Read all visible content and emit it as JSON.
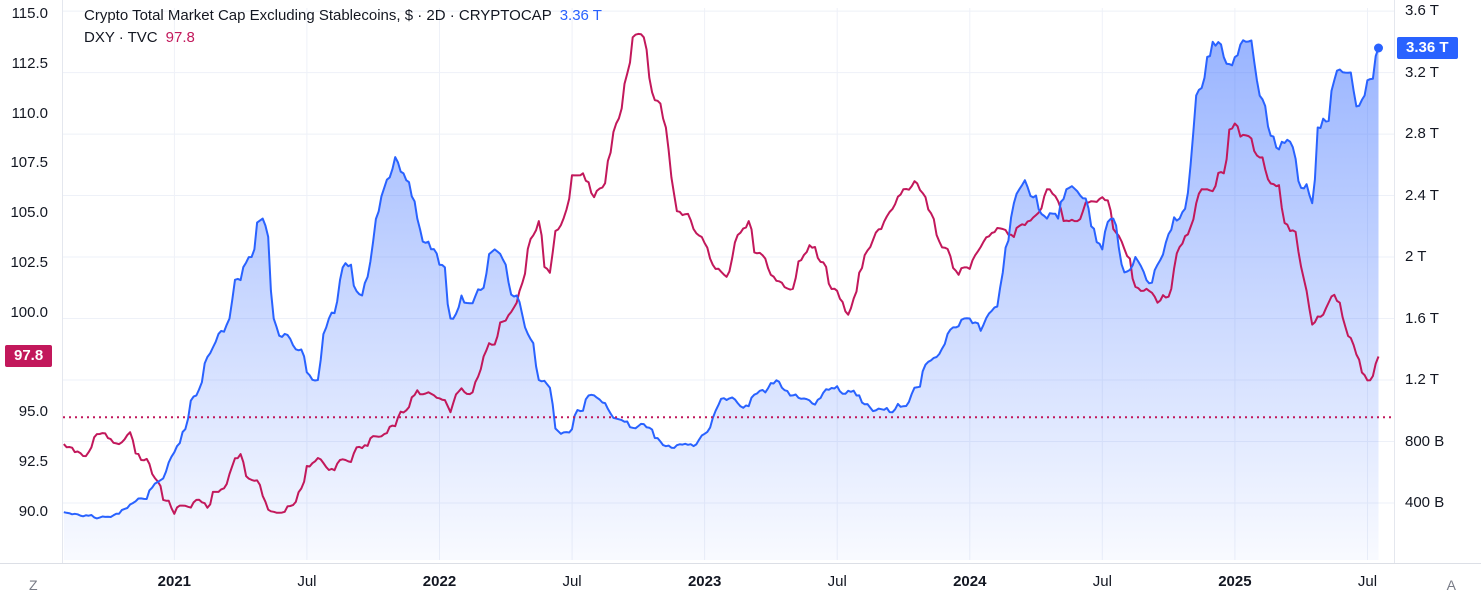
{
  "legend": {
    "line1": {
      "title": "Crypto Total Market Cap Excluding Stablecoins, $ · 2D · CRYPTOCAP",
      "value": "3.36 T"
    },
    "line2": {
      "title": "DXY · TVC",
      "value": "97.8"
    }
  },
  "colors": {
    "crypto": "#2962FF",
    "dxy": "#C2185B",
    "grid": "#eef1f8",
    "axis_text": "#131722",
    "muted_text": "#787b86",
    "badge_text": "#ffffff"
  },
  "left_axis": {
    "ticks": [
      {
        "label": "115.0",
        "value": 115.0
      },
      {
        "label": "112.5",
        "value": 112.5
      },
      {
        "label": "110.0",
        "value": 110.0
      },
      {
        "label": "107.5",
        "value": 107.5
      },
      {
        "label": "105.0",
        "value": 105.0
      },
      {
        "label": "102.5",
        "value": 102.5
      },
      {
        "label": "100.0",
        "value": 100.0
      },
      {
        "label": "95.0",
        "value": 95.0
      },
      {
        "label": "92.5",
        "value": 92.5
      },
      {
        "label": "90.0",
        "value": 90.0
      }
    ],
    "badge": {
      "label": "97.8",
      "value": 97.8
    }
  },
  "right_axis": {
    "ticks": [
      {
        "label": "3.6 T",
        "value": 3600
      },
      {
        "label": "3.2 T",
        "value": 3200
      },
      {
        "label": "2.8 T",
        "value": 2800
      },
      {
        "label": "2.4 T",
        "value": 2400
      },
      {
        "label": "2 T",
        "value": 2000
      },
      {
        "label": "1.6 T",
        "value": 1600
      },
      {
        "label": "1.2 T",
        "value": 1200
      },
      {
        "label": "800 B",
        "value": 800
      },
      {
        "label": "400 B",
        "value": 400
      }
    ],
    "badge": {
      "label": "3.36 T",
      "value": 3360
    }
  },
  "time_axis": {
    "ticks": [
      {
        "label": "2021",
        "value": 2021.0,
        "major": true
      },
      {
        "label": "Jul",
        "value": 2021.5,
        "major": false
      },
      {
        "label": "2022",
        "value": 2022.0,
        "major": true
      },
      {
        "label": "Jul",
        "value": 2022.5,
        "major": false
      },
      {
        "label": "2023",
        "value": 2023.0,
        "major": true
      },
      {
        "label": "Jul",
        "value": 2023.5,
        "major": false
      },
      {
        "label": "2024",
        "value": 2024.0,
        "major": true
      },
      {
        "label": "Jul",
        "value": 2024.5,
        "major": false
      },
      {
        "label": "2025",
        "value": 2025.0,
        "major": true
      },
      {
        "label": "Jul",
        "value": 2025.5,
        "major": false
      }
    ]
  },
  "corners": {
    "left": "Z",
    "right": "A"
  },
  "chart_data": {
    "type": "line",
    "title": "Crypto Total Market Cap Excluding Stablecoins ($, 2D, CRYPTOCAP) vs DXY (TVC)",
    "xlim": [
      2020.58,
      2025.6
    ],
    "left_ylim": [
      87.58,
      115.3
    ],
    "right_ylim": [
      0,
      3620
    ],
    "x_start": 2020.583,
    "x_step": 0.041667,
    "x_unit": "year",
    "reference_level_left": 94.75,
    "legend_position": "top-left",
    "grid": true,
    "series": [
      {
        "name": "Crypto Total Market Cap Excluding Stablecoins, $ · 2D · CRYPTOCAP",
        "axis": "right",
        "style": "area",
        "color": "#2962FF",
        "unit": "USD billions",
        "last_value": 3360,
        "last_value_label": "3.36 T",
        "values": [
          340,
          330,
          320,
          300,
          310,
          330,
          390,
          430,
          500,
          560,
          730,
          880,
          1100,
          1350,
          1500,
          1600,
          1850,
          2000,
          2250,
          1600,
          1500,
          1400,
          1250,
          1200,
          1600,
          1850,
          1950,
          1750,
          2100,
          2450,
          2650,
          2500,
          2250,
          2100,
          1950,
          1600,
          1750,
          1700,
          1800,
          2050,
          1950,
          1750,
          1500,
          1200,
          1150,
          850,
          880,
          1000,
          1100,
          1050,
          950,
          930,
          900,
          890,
          800,
          760,
          780,
          770,
          850,
          1000,
          1070,
          1050,
          1030,
          1130,
          1180,
          1150,
          1100,
          1080,
          1040,
          1140,
          1160,
          1130,
          1100,
          1020,
          1010,
          990,
          1030,
          1150,
          1300,
          1350,
          1500,
          1550,
          1600,
          1520,
          1650,
          1900,
          2350,
          2500,
          2400,
          2250,
          2250,
          2450,
          2400,
          2200,
          2050,
          2250,
          1900,
          2000,
          1850,
          1950,
          2150,
          2250,
          2600,
          3100,
          3400,
          3300,
          3300,
          3400,
          3150,
          2850,
          2700,
          2750,
          2450,
          2350,
          2900,
          3150,
          3200,
          2980,
          3150,
          3360
        ]
      },
      {
        "name": "DXY · TVC",
        "axis": "left",
        "style": "line",
        "color": "#C2185B",
        "unit": "index",
        "last_value": 97.8,
        "last_value_label": "97.8",
        "values": [
          93.4,
          93.0,
          92.8,
          93.9,
          93.7,
          93.4,
          94.0,
          92.6,
          91.9,
          90.6,
          89.9,
          90.3,
          90.6,
          90.2,
          91.0,
          91.9,
          92.9,
          91.6,
          90.8,
          90.0,
          90.0,
          90.5,
          92.3,
          92.7,
          92.1,
          92.6,
          92.5,
          93.2,
          93.8,
          93.9,
          94.3,
          95.1,
          96.1,
          96.0,
          95.7,
          95.0,
          96.2,
          96.0,
          97.8,
          98.4,
          99.6,
          100.5,
          103.2,
          104.6,
          102.0,
          104.4,
          106.9,
          107.0,
          105.8,
          106.5,
          109.5,
          112.0,
          114.0,
          111.8,
          110.5,
          106.8,
          104.9,
          104.2,
          103.5,
          102.2,
          101.8,
          103.9,
          104.6,
          103.0,
          101.9,
          101.5,
          101.2,
          102.9,
          103.3,
          102.3,
          101.1,
          99.9,
          102.0,
          103.3,
          104.2,
          105.2,
          106.2,
          106.6,
          105.8,
          103.9,
          103.2,
          101.9,
          102.2,
          103.3,
          104.0,
          104.2,
          103.8,
          104.4,
          104.9,
          106.2,
          105.6,
          104.6,
          104.7,
          105.6,
          105.8,
          104.2,
          103.2,
          101.3,
          101.2,
          100.5,
          100.8,
          103.3,
          104.3,
          106.2,
          106.1,
          107.0,
          109.5,
          108.9,
          107.9,
          106.7,
          106.4,
          104.1,
          102.3,
          99.4,
          99.9,
          100.9,
          99.3,
          97.9,
          96.6,
          97.8
        ]
      }
    ]
  }
}
